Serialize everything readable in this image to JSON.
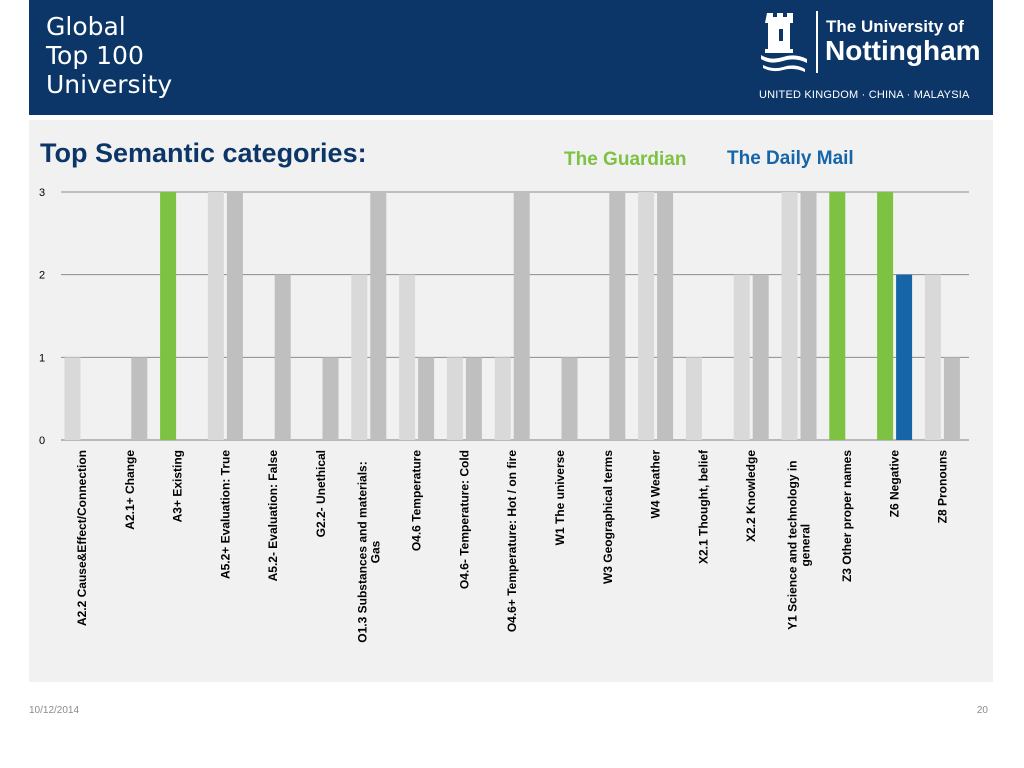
{
  "header": {
    "tagline": [
      "Global",
      "Top 100",
      "University"
    ],
    "logo": {
      "line1": "The University of",
      "line2": "Nottingham",
      "countries": "UNITED KINGDOM · CHINA · MALAYSIA",
      "icon": "castle-crest-icon"
    }
  },
  "chart_title": "Top Semantic categories:",
  "legend": {
    "guardian": "The Guardian",
    "mail": "The Daily Mail"
  },
  "colors": {
    "header_bg": "#0c3668",
    "guardian": "#7dc242",
    "mail": "#1565a8",
    "guardian_default": "#d9d9d9",
    "mail_default": "#bfbfbf"
  },
  "chart_data": {
    "type": "bar",
    "categories": [
      "A2.2 Cause&Effect/Connection",
      "A2.1+ Change",
      "A3+ Existing",
      "A5.2+ Evaluation: True",
      "A5.2- Evaluation: False",
      "G2.2- Unethical",
      "O1.3 Substances and materials: Gas",
      "O4.6 Temperature",
      "O4.6- Temperature: Cold",
      "O4.6+ Temperature: Hot / on fire",
      "W1 The universe",
      "W3 Geographical terms",
      "W4 Weather",
      "X2.1 Thought, belief",
      "X2.2 Knowledge",
      "Y1 Science and technology in general",
      "Z3 Other proper names",
      "Z6 Negative",
      "Z8 Pronouns"
    ],
    "series": [
      {
        "name": "The Guardian",
        "values": [
          1,
          0,
          3,
          3,
          0,
          0,
          2,
          2,
          1,
          1,
          0,
          0,
          3,
          1,
          2,
          3,
          3,
          3,
          2
        ],
        "highlight": [
          false,
          false,
          true,
          false,
          false,
          false,
          false,
          false,
          false,
          false,
          false,
          false,
          false,
          false,
          false,
          false,
          true,
          true,
          false
        ]
      },
      {
        "name": "The Daily Mail",
        "values": [
          0,
          1,
          0,
          3,
          2,
          1,
          3,
          1,
          1,
          3,
          1,
          3,
          3,
          0,
          2,
          3,
          0,
          2,
          1
        ],
        "highlight": [
          false,
          false,
          false,
          false,
          false,
          false,
          false,
          false,
          false,
          false,
          false,
          false,
          false,
          false,
          false,
          false,
          false,
          true,
          false
        ]
      }
    ],
    "yticks": [
      0,
      1,
      2,
      3
    ],
    "ylim": [
      0,
      3
    ],
    "grid": true,
    "legend_position": "top-right"
  },
  "footer": {
    "date": "10/12/2014",
    "page": "20"
  }
}
